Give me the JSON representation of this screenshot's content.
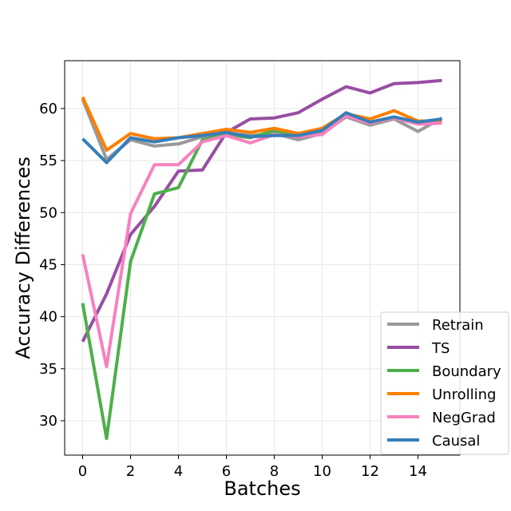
{
  "chart_data": {
    "type": "line",
    "title": "",
    "xlabel": "Batches",
    "ylabel": "Accuracy Differences",
    "xlim": [
      -0.75,
      15.75
    ],
    "ylim": [
      26.7,
      64.6
    ],
    "grid": true,
    "legend_position": "bottom-right",
    "x": [
      0,
      1,
      2,
      3,
      4,
      5,
      6,
      7,
      8,
      9,
      10,
      11,
      12,
      13,
      14,
      15
    ],
    "x_ticks": [
      "0",
      "2",
      "4",
      "6",
      "8",
      "10",
      "12",
      "14"
    ],
    "y_ticks": [
      "30",
      "35",
      "40",
      "45",
      "50",
      "55",
      "60"
    ],
    "series": [
      {
        "name": "Retrain",
        "color": "#999999",
        "values": [
          60.9,
          55.1,
          57.0,
          56.4,
          56.6,
          57.3,
          57.6,
          57.4,
          57.6,
          57.0,
          57.6,
          59.2,
          58.4,
          59.0,
          57.8,
          59.1
        ]
      },
      {
        "name": "TS",
        "color": "#984ea3",
        "values": [
          37.6,
          42.2,
          47.9,
          50.6,
          54.0,
          54.1,
          57.7,
          59.0,
          59.1,
          59.6,
          60.9,
          62.1,
          61.5,
          62.4,
          62.5,
          62.7
        ]
      },
      {
        "name": "Boundary",
        "color": "#4daf4a",
        "values": [
          41.3,
          28.3,
          45.3,
          51.8,
          52.4,
          57.0,
          57.5,
          57.2,
          57.9,
          57.3,
          57.9,
          59.4,
          58.6,
          59.1,
          58.6,
          58.7
        ]
      },
      {
        "name": "Unrolling",
        "color": "#ff7f00",
        "values": [
          61.1,
          56.0,
          57.6,
          57.1,
          57.2,
          57.6,
          58.0,
          57.7,
          58.1,
          57.6,
          58.1,
          59.5,
          59.0,
          59.8,
          58.8,
          58.8
        ]
      },
      {
        "name": "NegGrad",
        "color": "#f781bf",
        "values": [
          46.0,
          35.2,
          49.9,
          54.6,
          54.6,
          56.8,
          57.4,
          56.7,
          57.5,
          57.3,
          57.5,
          59.3,
          58.6,
          59.1,
          58.5,
          58.6
        ]
      },
      {
        "name": "Causal",
        "color": "#377eb8",
        "values": [
          57.1,
          54.8,
          57.2,
          56.8,
          57.2,
          57.4,
          57.7,
          57.3,
          57.4,
          57.4,
          57.9,
          59.6,
          58.7,
          59.2,
          58.7,
          59.0
        ]
      }
    ]
  }
}
